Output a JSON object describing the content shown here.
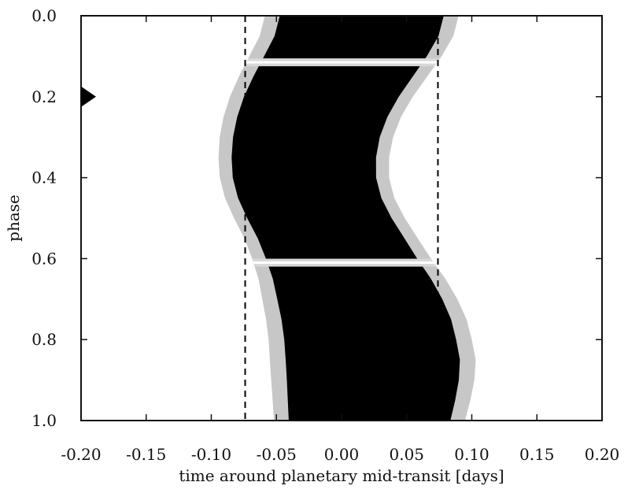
{
  "chart_data": {
    "type": "heatmap",
    "title": "",
    "xlabel": "time around planetary mid-transit [days]",
    "ylabel": "phase",
    "xlim": [
      -0.2,
      0.2
    ],
    "ylim": [
      0.0,
      1.0
    ],
    "y_inverted": true,
    "x_ticks": [
      "-0.20",
      "-0.15",
      "-0.10",
      "-0.05",
      "0.00",
      "0.05",
      "0.10",
      "0.15",
      "0.20"
    ],
    "x_tick_values": [
      -0.2,
      -0.15,
      -0.1,
      -0.05,
      0.0,
      0.05,
      0.1,
      0.15,
      0.2
    ],
    "y_ticks": [
      "0.0",
      "0.2",
      "0.4",
      "0.6",
      "0.8",
      "1.0"
    ],
    "y_tick_values": [
      0.0,
      0.2,
      0.4,
      0.6,
      0.8,
      1.0
    ],
    "grid": false,
    "colormap": "white-to-black",
    "transit_band": {
      "phase": [
        0.0,
        0.05,
        0.1,
        0.15,
        0.2,
        0.25,
        0.3,
        0.35,
        0.4,
        0.45,
        0.5,
        0.55,
        0.6,
        0.65,
        0.7,
        0.75,
        0.8,
        0.85,
        0.9,
        0.95,
        1.0
      ],
      "left_edge": [
        -0.056,
        -0.06,
        -0.068,
        -0.076,
        -0.083,
        -0.088,
        -0.091,
        -0.092,
        -0.091,
        -0.087,
        -0.08,
        -0.072,
        -0.066,
        -0.061,
        -0.058,
        -0.055,
        -0.053,
        -0.052,
        -0.051,
        -0.05,
        -0.049
      ],
      "right_edge": [
        0.087,
        0.083,
        0.074,
        0.063,
        0.052,
        0.043,
        0.037,
        0.034,
        0.034,
        0.038,
        0.046,
        0.056,
        0.066,
        0.077,
        0.086,
        0.093,
        0.097,
        0.1,
        0.099,
        0.096,
        0.092
      ]
    },
    "gaps_phase": [
      0.115,
      0.61
    ],
    "dashed_lines_x": [
      -0.074,
      0.074
    ],
    "marker": {
      "shape": "triangle",
      "phase": 0.2,
      "side": "left"
    },
    "colors": {
      "band": "#000000",
      "gap": "#d8d8d8",
      "background": "#ffffff",
      "axis": "#111111"
    }
  }
}
